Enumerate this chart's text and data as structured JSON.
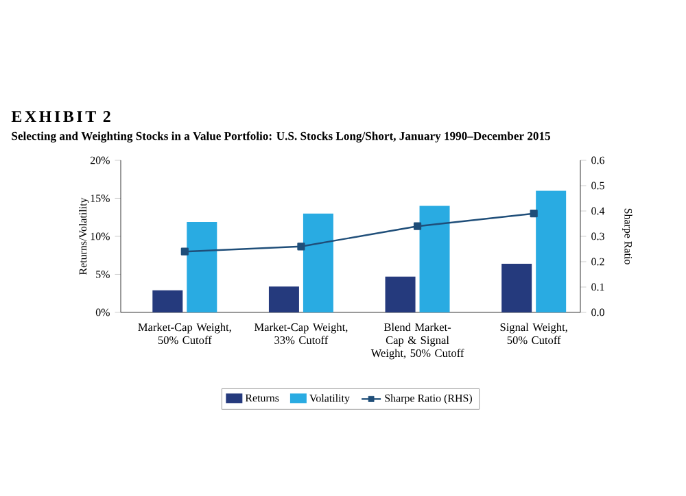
{
  "chart_data": {
    "type": "bar",
    "title": "EXHIBIT 2",
    "subtitle": "Selecting and Weighting Stocks in a Value Portfolio: U.S. Stocks Long/Short, January 1990–December 2015",
    "ylabel": "Returns/Volatility",
    "y2label": "Sharpe Ratio",
    "categories": [
      "Market-Cap Weight, 50% Cutoff",
      "Market-Cap Weight, 33% Cutoff",
      "Blend Market-Cap & Signal Weight, 50% Cutoff",
      "Signal Weight, 50% Cutoff"
    ],
    "series": [
      {
        "name": "Returns",
        "color": "#253a7d",
        "values": [
          2.9,
          3.4,
          4.7,
          6.4
        ]
      },
      {
        "name": "Volatility",
        "color": "#29abe2",
        "values": [
          11.9,
          13.0,
          14.0,
          16.0
        ]
      },
      {
        "name": "Sharpe Ratio (RHS)",
        "type": "line",
        "axis": "y2",
        "color": "#1f4e79",
        "marker": "square",
        "values": [
          0.24,
          0.26,
          0.34,
          0.39
        ]
      }
    ],
    "ylim": [
      0,
      20
    ],
    "yticks": [
      {
        "value": 0,
        "label": "0%"
      },
      {
        "value": 5,
        "label": "5%"
      },
      {
        "value": 10,
        "label": "10%"
      },
      {
        "value": 15,
        "label": "15%"
      },
      {
        "value": 20,
        "label": "20%"
      }
    ],
    "y2lim": [
      0,
      0.6
    ],
    "y2ticks": [
      {
        "value": 0,
        "label": "0.0"
      },
      0.1,
      0.2,
      0.3,
      0.4,
      0.5,
      0.6
    ],
    "legend": "bottom",
    "grid": false
  }
}
